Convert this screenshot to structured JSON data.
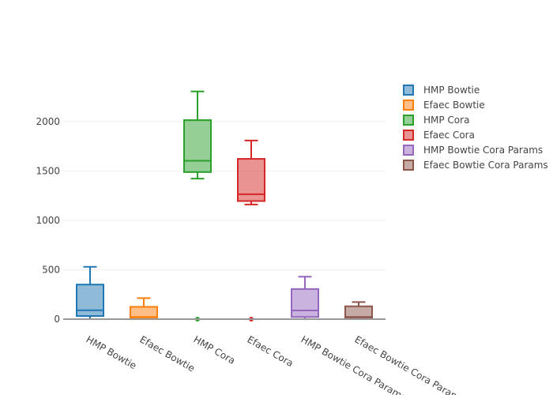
{
  "chart_data": {
    "type": "box",
    "categories": [
      "HMP Bowtie",
      "Efaec Bowtie",
      "HMP Cora",
      "Efaec Cora",
      "HMP Bowtie Cora Params",
      "Efaec Bowtie Cora Params"
    ],
    "ylim": [
      0,
      2430
    ],
    "yticks": [
      0,
      500,
      1000,
      1500,
      2000
    ],
    "grid": true,
    "legend_position": "right",
    "series": [
      {
        "name": "HMP Bowtie",
        "color": "#1f77b4",
        "min": 0,
        "q1": 32,
        "median": 90,
        "q3": 350,
        "max": 530,
        "outliers": []
      },
      {
        "name": "Efaec Bowtie",
        "color": "#ff7f0e",
        "min": 0,
        "q1": 5,
        "median": 22,
        "q3": 125,
        "max": 213,
        "outliers": []
      },
      {
        "name": "HMP Cora",
        "color": "#2ca02c",
        "min": 1422,
        "q1": 1488,
        "median": 1603,
        "q3": 2014,
        "max": 2304,
        "outliers": [
          0
        ]
      },
      {
        "name": "Efaec Cora",
        "color": "#d62728",
        "min": 1160,
        "q1": 1195,
        "median": 1264,
        "q3": 1622,
        "max": 1808,
        "outliers": [
          0
        ]
      },
      {
        "name": "HMP Bowtie Cora Params",
        "color": "#9467bd",
        "min": 0,
        "q1": 22,
        "median": 88,
        "q3": 305,
        "max": 430,
        "outliers": []
      },
      {
        "name": "Efaec Bowtie Cora Params",
        "color": "#8c564b",
        "min": 0,
        "q1": 5,
        "median": 22,
        "q3": 130,
        "max": 173,
        "outliers": []
      }
    ]
  }
}
